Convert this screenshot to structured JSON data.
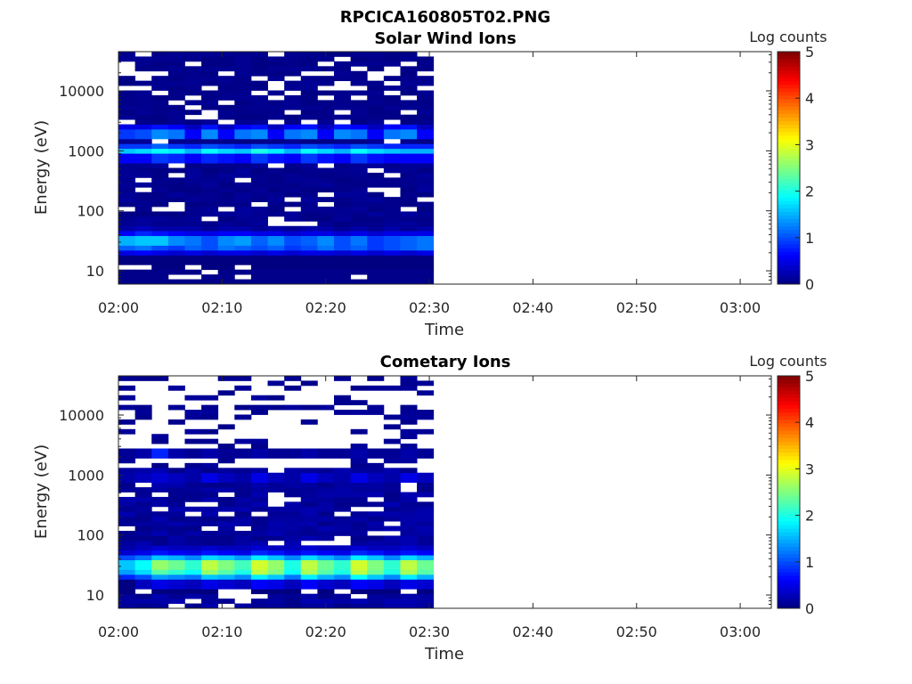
{
  "figure_title": "RPCICA160805T02.PNG",
  "colors": {
    "colormap": "jet",
    "axis": "#262626",
    "background": "#ffffff"
  },
  "chart_data": [
    {
      "type": "heatmap",
      "title": "Solar Wind Ions",
      "xlabel": "Time",
      "ylabel": "Energy (eV)",
      "yscale": "log",
      "ylim": [
        6,
        45000
      ],
      "xlim": [
        "02:00",
        "03:03"
      ],
      "xticks": [
        "02:00",
        "02:10",
        "02:20",
        "02:30",
        "02:40",
        "02:50",
        "03:00"
      ],
      "yticks": [
        "10",
        "100",
        "1000",
        "10000"
      ],
      "colorbar": {
        "label": "Log counts",
        "range": [
          0,
          5
        ],
        "ticks": [
          "0",
          "1",
          "2",
          "3",
          "4",
          "5"
        ]
      },
      "data_time_range": [
        "02:00",
        "02:30"
      ],
      "time_bin_minutes": 1.6,
      "rows": [
        {
          "e": 12,
          "lvl": [
            -1,
            -1,
            0,
            0,
            -1,
            0,
            0,
            -1,
            0,
            0,
            0,
            0,
            0,
            0,
            0,
            0,
            0,
            0,
            0
          ]
        },
        {
          "e": 16,
          "lvl": [
            0,
            0,
            0,
            0,
            0,
            0,
            0,
            0,
            0,
            0,
            0,
            0,
            0,
            0,
            0,
            0,
            0,
            0,
            0
          ]
        },
        {
          "e": 21,
          "lvl": [
            0.5,
            0.6,
            0.5,
            0.4,
            0.5,
            0.4,
            0.5,
            0.5,
            0.4,
            0.5,
            0.4,
            0.5,
            0.5,
            0.4,
            0.5,
            0.4,
            0.5,
            0.4,
            0.5
          ]
        },
        {
          "e": 26,
          "lvl": [
            1.1,
            1.2,
            1.0,
            0.9,
            1.1,
            1.0,
            1.2,
            1.1,
            1.0,
            1.1,
            0.9,
            1.0,
            1.2,
            1.0,
            1.1,
            0.9,
            1.0,
            1.1,
            1.2
          ]
        },
        {
          "e": 32,
          "lvl": [
            1.5,
            1.6,
            1.6,
            1.3,
            1.2,
            1.0,
            1.3,
            1.4,
            1.1,
            1.3,
            1.0,
            1.1,
            1.3,
            1.0,
            1.2,
            0.9,
            1.0,
            1.1,
            1.2
          ]
        },
        {
          "e": 40,
          "lvl": [
            0.6,
            0.8,
            0.7,
            0.6,
            0.5,
            0.5,
            0.6,
            0.6,
            0.5,
            0.5,
            0.4,
            0.5,
            0.5,
            0.4,
            0.5,
            0.4,
            0.5,
            0.5,
            0.5
          ]
        },
        {
          "e": 50,
          "lvl": [
            0.2,
            0.3,
            0.2,
            0.2,
            0.2,
            0.1,
            0.2,
            0.2,
            0.1,
            0.2,
            0.1,
            0.2,
            0.2,
            0.1,
            0.2,
            0.1,
            0.2,
            0.1,
            0.2
          ]
        },
        {
          "e": 800,
          "lvl": [
            0.6,
            0.6,
            0.9,
            0.8,
            0.6,
            0.8,
            0.7,
            0.6,
            0.9,
            0.7,
            0.6,
            0.9,
            0.7,
            0.6,
            0.9,
            0.7,
            0.6,
            0.6,
            0.6
          ]
        },
        {
          "e": 1000,
          "lvl": [
            1.6,
            1.7,
            1.9,
            1.8,
            1.5,
            1.9,
            1.7,
            1.6,
            2.0,
            1.8,
            1.5,
            1.9,
            1.7,
            1.5,
            1.9,
            1.7,
            1.6,
            1.5,
            1.5
          ]
        },
        {
          "e": 1300,
          "lvl": [
            0.9,
            0.9,
            1.1,
            0.9,
            0.8,
            1.0,
            0.9,
            0.8,
            1.0,
            0.9,
            0.8,
            1.0,
            0.9,
            0.8,
            1.0,
            0.9,
            0.8,
            0.8,
            0.8
          ]
        },
        {
          "e": 2100,
          "lvl": [
            0.9,
            1.0,
            1.3,
            1.2,
            0.6,
            1.3,
            0.6,
            1.2,
            1.3,
            0.6,
            1.2,
            1.3,
            0.6,
            1.3,
            1.2,
            0.6,
            1.2,
            1.3,
            0.6
          ]
        },
        {
          "e": 2700,
          "lvl": [
            0.5,
            0.5,
            0.7,
            0.6,
            0.3,
            0.7,
            0.3,
            0.6,
            0.7,
            0.3,
            0.6,
            0.7,
            0.3,
            0.7,
            0.6,
            0.3,
            0.6,
            0.7,
            0.3
          ]
        }
      ]
    },
    {
      "type": "heatmap",
      "title": "Cometary Ions",
      "xlabel": "Time",
      "ylabel": "Energy (eV)",
      "yscale": "log",
      "ylim": [
        6,
        45000
      ],
      "xlim": [
        "02:00",
        "03:03"
      ],
      "xticks": [
        "02:00",
        "02:10",
        "02:20",
        "02:30",
        "02:40",
        "02:50",
        "03:00"
      ],
      "yticks": [
        "10",
        "100",
        "1000",
        "10000"
      ],
      "colorbar": {
        "label": "Log counts",
        "range": [
          0,
          5
        ],
        "ticks": [
          "0",
          "1",
          "2",
          "3",
          "4",
          "5"
        ]
      },
      "data_time_range": [
        "02:00",
        "02:30"
      ],
      "time_bin_minutes": 1.6,
      "rows": [
        {
          "e": 12,
          "lvl": [
            0,
            -1,
            0,
            0,
            0,
            0,
            -1,
            -1,
            0,
            0,
            0,
            -1,
            0,
            -1,
            0,
            0,
            0,
            -1,
            0
          ]
        },
        {
          "e": 16,
          "lvl": [
            0,
            0.3,
            0.5,
            0.4,
            0.3,
            0.5,
            0.4,
            0.3,
            0.6,
            0.5,
            0.3,
            0.6,
            0.4,
            0.3,
            0.6,
            0.5,
            0.3,
            0.5,
            0.4
          ]
        },
        {
          "e": 21,
          "lvl": [
            0.8,
            1.0,
            1.4,
            1.3,
            1.2,
            1.6,
            1.5,
            1.3,
            1.8,
            1.6,
            1.2,
            1.8,
            1.5,
            1.3,
            1.9,
            1.6,
            1.3,
            1.8,
            1.5
          ]
        },
        {
          "e": 26,
          "lvl": [
            1.4,
            1.7,
            2.3,
            2.1,
            1.9,
            2.6,
            2.3,
            2.0,
            2.8,
            2.5,
            1.9,
            2.7,
            2.3,
            2.0,
            2.8,
            2.4,
            2.0,
            2.7,
            2.3
          ]
        },
        {
          "e": 32,
          "lvl": [
            1.6,
            1.9,
            2.6,
            2.4,
            2.1,
            2.8,
            2.5,
            2.2,
            2.9,
            2.6,
            2.0,
            2.8,
            2.4,
            2.1,
            2.9,
            2.5,
            2.1,
            2.8,
            2.4
          ]
        },
        {
          "e": 40,
          "lvl": [
            1.0,
            1.2,
            1.6,
            1.5,
            1.3,
            1.7,
            1.6,
            1.4,
            1.8,
            1.6,
            1.3,
            1.7,
            1.5,
            1.3,
            1.8,
            1.6,
            1.3,
            1.7,
            1.5
          ]
        },
        {
          "e": 50,
          "lvl": [
            0.4,
            0.5,
            0.7,
            0.6,
            0.5,
            0.7,
            0.6,
            0.5,
            0.8,
            0.7,
            0.5,
            0.7,
            0.6,
            0.5,
            0.8,
            0.7,
            0.5,
            0.7,
            0.6
          ]
        },
        {
          "e": 65,
          "lvl": [
            0.2,
            0.3,
            0.4,
            0.3,
            0.3,
            0.4,
            0.3,
            0.3,
            0.4,
            0.3,
            0.3,
            0.4,
            0.3,
            0.3,
            0.4,
            0.3,
            0.3,
            0.4,
            0.3
          ]
        },
        {
          "e": 1000,
          "lvl": [
            0.2,
            0.3,
            0.4,
            0.3,
            0.2,
            0.5,
            0.3,
            0.2,
            0.5,
            0.3,
            0.2,
            0.5,
            0.3,
            0.2,
            0.5,
            0.3,
            0.2,
            0.5,
            0.3
          ]
        },
        {
          "e": 2500,
          "lvl": [
            0.1,
            0.2,
            0.8,
            0.2,
            0.1,
            0.2,
            0.1,
            0.1,
            0.2,
            0.1,
            0.1,
            0.2,
            0.1,
            0.1,
            0.2,
            0.1,
            0.1,
            0.2,
            0.1
          ]
        }
      ]
    }
  ]
}
